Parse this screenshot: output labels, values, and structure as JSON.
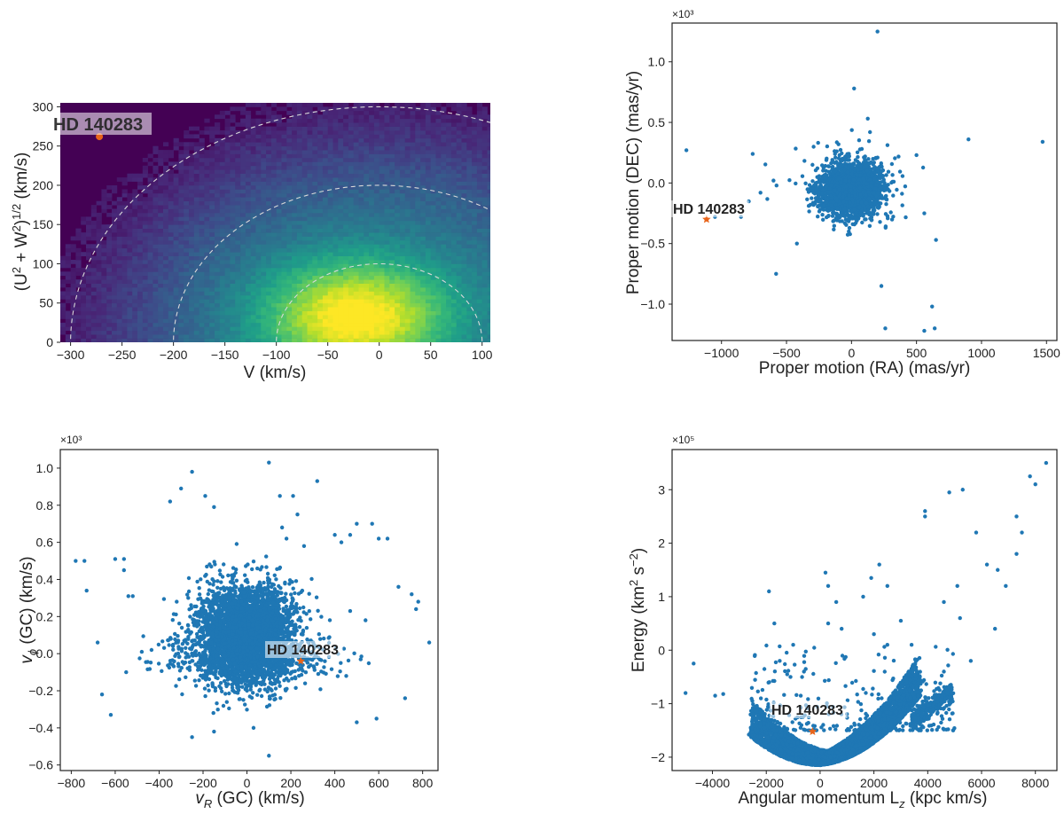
{
  "colors": {
    "point": "#1f77b4",
    "highlight": "#e8641a",
    "axes": "#222222",
    "guide": "#d9d9d9",
    "heat_low": "#440154",
    "heat_high": "#fde725"
  },
  "chart_data": [
    {
      "id": "toomre",
      "type": "heatmap",
      "title": "",
      "xlabel": "V (km/s)",
      "ylabel": "(U² + W²)^(1/2) (km/s)",
      "ylabel_base": "(U",
      "ylabel_sup1": "2",
      "ylabel_mid": " + W",
      "ylabel_sup2": "2",
      "ylabel_close": ")",
      "ylabel_sup3": "1/2",
      "ylabel_unit": " (km/s)",
      "xlim": [
        -310,
        108
      ],
      "ylim": [
        0,
        305
      ],
      "xticks": [
        -300,
        -250,
        -200,
        -150,
        -100,
        -50,
        0,
        50,
        100
      ],
      "yticks": [
        0,
        50,
        100,
        150,
        200,
        250,
        300
      ],
      "density_peak": {
        "x": -20,
        "y": 30
      },
      "density_spread": {
        "sx": 55,
        "sy": 45
      },
      "guide_circles_kms": [
        100,
        200,
        300
      ],
      "highlight": {
        "label": "HD 140283",
        "x": -272,
        "y": 262
      }
    },
    {
      "id": "proper_motion",
      "type": "scatter",
      "xlabel": "Proper motion (RA) (mas/yr)",
      "ylabel": "Proper motion (DEC) (mas/yr)",
      "y_scale_label": "×10³",
      "xlim": [
        -1380,
        1580
      ],
      "ylim": [
        -1.3,
        1.32
      ],
      "xticks": [
        -1000,
        -500,
        0,
        500,
        1000,
        1500
      ],
      "yticks": [
        -1.0,
        -0.5,
        0.0,
        0.5,
        1.0
      ],
      "ytick_labels": [
        "−1.0",
        "−0.5",
        "0.0",
        "0.5",
        "1.0"
      ],
      "cloud": {
        "cx": 0,
        "cy": -0.05,
        "sx": 110,
        "sy": 0.1,
        "n": 2600
      },
      "outliers": [
        [
          200,
          1.25
        ],
        [
          20,
          0.78
        ],
        [
          -1270,
          0.27
        ],
        [
          900,
          0.36
        ],
        [
          1470,
          0.34
        ],
        [
          -760,
          0.24
        ],
        [
          -600,
          0.02
        ],
        [
          -580,
          -0.75
        ],
        [
          -420,
          -0.5
        ],
        [
          620,
          -1.02
        ],
        [
          640,
          -1.2
        ],
        [
          560,
          -1.22
        ],
        [
          260,
          -1.2
        ],
        [
          230,
          -0.85
        ],
        [
          650,
          -0.47
        ],
        [
          500,
          0.23
        ],
        [
          -100,
          0.32
        ],
        [
          -300,
          0.15
        ],
        [
          -850,
          -0.28
        ],
        [
          -1050,
          -0.28
        ],
        [
          -700,
          -0.08
        ],
        [
          560,
          -0.25
        ]
      ],
      "highlight": {
        "label": "HD 140283",
        "x": -1115,
        "y": -0.3
      }
    },
    {
      "id": "vr_vphi",
      "type": "scatter",
      "xlabel_sym": "v",
      "xlabel_sub": "R",
      "xlabel_unit": " (GC) (km/s)",
      "ylabel_sym": "v",
      "ylabel_sub": "ϕ",
      "ylabel_unit": " (GC) (km/s)",
      "y_scale_label": "×10³",
      "xlim": [
        -850,
        870
      ],
      "ylim": [
        -0.63,
        1.1
      ],
      "xticks": [
        -800,
        -600,
        -400,
        -200,
        0,
        200,
        400,
        600,
        800
      ],
      "xtick_labels": [
        "−800",
        "−600",
        "−400",
        "−200",
        "0",
        "200",
        "400",
        "600",
        "800"
      ],
      "yticks": [
        -0.6,
        -0.4,
        -0.2,
        0.0,
        0.2,
        0.4,
        0.6,
        0.8,
        1.0
      ],
      "ytick_labels": [
        "−0.6",
        "−0.4",
        "−0.2",
        "0.0",
        "0.2",
        "0.4",
        "0.6",
        "0.8",
        "1.0"
      ],
      "cloud": {
        "cx": 0,
        "cy": 0.1,
        "sx": 110,
        "sy": 0.13,
        "n": 4200
      },
      "outliers": [
        [
          -780,
          0.5
        ],
        [
          -740,
          0.5
        ],
        [
          -730,
          0.34
        ],
        [
          -600,
          0.51
        ],
        [
          -560,
          0.51
        ],
        [
          -560,
          0.45
        ],
        [
          -540,
          0.31
        ],
        [
          -520,
          0.31
        ],
        [
          -660,
          -0.22
        ],
        [
          -620,
          -0.33
        ],
        [
          -680,
          0.06
        ],
        [
          -550,
          -0.1
        ],
        [
          -250,
          0.98
        ],
        [
          -300,
          0.89
        ],
        [
          -350,
          0.82
        ],
        [
          -190,
          0.85
        ],
        [
          -150,
          0.79
        ],
        [
          100,
          1.03
        ],
        [
          150,
          0.85
        ],
        [
          210,
          0.85
        ],
        [
          320,
          0.93
        ],
        [
          160,
          0.68
        ],
        [
          180,
          0.62
        ],
        [
          230,
          0.75
        ],
        [
          260,
          0.58
        ],
        [
          400,
          0.64
        ],
        [
          430,
          0.6
        ],
        [
          470,
          0.64
        ],
        [
          500,
          0.7
        ],
        [
          570,
          0.7
        ],
        [
          600,
          0.62
        ],
        [
          640,
          0.62
        ],
        [
          690,
          0.36
        ],
        [
          750,
          0.32
        ],
        [
          780,
          0.28
        ],
        [
          770,
          0.24
        ],
        [
          830,
          0.06
        ],
        [
          720,
          -0.24
        ],
        [
          500,
          -0.37
        ],
        [
          590,
          -0.35
        ],
        [
          540,
          0.18
        ],
        [
          470,
          0.23
        ],
        [
          -250,
          -0.45
        ],
        [
          -150,
          -0.42
        ],
        [
          100,
          -0.55
        ],
        [
          30,
          -0.4
        ]
      ],
      "highlight": {
        "label": "HD 140283",
        "x": 245,
        "y": -0.04
      }
    },
    {
      "id": "lz_energy",
      "type": "scatter",
      "xlabel_sym": "Angular momentum L",
      "xlabel_sub": "z",
      "xlabel_unit": " (kpc km/s)",
      "ylabel_base": "Energy (km",
      "ylabel_sup1": "2",
      "ylabel_mid": " s",
      "ylabel_sup2": "−2",
      "ylabel_close": ")",
      "y_scale_label": "×10⁵",
      "xlim": [
        -5500,
        8800
      ],
      "ylim": [
        -2.25,
        3.75
      ],
      "xticks": [
        -4000,
        -2000,
        0,
        2000,
        4000,
        6000,
        8000
      ],
      "xtick_labels": [
        "−4000",
        "−2000",
        "0",
        "2000",
        "4000",
        "6000",
        "8000"
      ],
      "yticks": [
        -2,
        -1,
        0,
        1,
        2,
        3
      ],
      "ytick_labels": [
        "−2",
        "−1",
        "0",
        "1",
        "2",
        "3"
      ],
      "band": {
        "x_min": -2500,
        "x_max": 3600,
        "n": 4000
      },
      "outliers": [
        [
          -5000,
          -0.8
        ],
        [
          -4700,
          -0.25
        ],
        [
          -3900,
          -0.85
        ],
        [
          -3600,
          -0.82
        ],
        [
          -2200,
          -0.9
        ],
        [
          -1900,
          1.1
        ],
        [
          -1700,
          0.5
        ],
        [
          -1500,
          -0.2
        ],
        [
          -1000,
          0.1
        ],
        [
          -1100,
          -0.5
        ],
        [
          -600,
          -0.4
        ],
        [
          200,
          1.45
        ],
        [
          300,
          1.2
        ],
        [
          600,
          0.9
        ],
        [
          300,
          0.5
        ],
        [
          800,
          0.4
        ],
        [
          1600,
          1.0
        ],
        [
          1900,
          1.35
        ],
        [
          2200,
          1.6
        ],
        [
          2500,
          1.2
        ],
        [
          2000,
          0.3
        ],
        [
          2500,
          0.1
        ],
        [
          3000,
          0.55
        ],
        [
          3400,
          0.1
        ],
        [
          3900,
          2.6
        ],
        [
          3900,
          2.5
        ],
        [
          4600,
          0.9
        ],
        [
          4800,
          2.95
        ],
        [
          5300,
          3.0
        ],
        [
          5100,
          1.2
        ],
        [
          5800,
          2.2
        ],
        [
          6200,
          1.6
        ],
        [
          6600,
          1.5
        ],
        [
          7300,
          2.5
        ],
        [
          7500,
          2.2
        ],
        [
          7800,
          3.25
        ],
        [
          8000,
          3.1
        ],
        [
          8400,
          3.5
        ],
        [
          7300,
          1.8
        ],
        [
          6900,
          1.2
        ],
        [
          6500,
          0.4
        ],
        [
          5600,
          -0.2
        ],
        [
          4600,
          -0.4
        ],
        [
          5200,
          0.6
        ]
      ],
      "highlight": {
        "label": "HD 140283",
        "x": -280,
        "y": -1.52
      }
    }
  ]
}
